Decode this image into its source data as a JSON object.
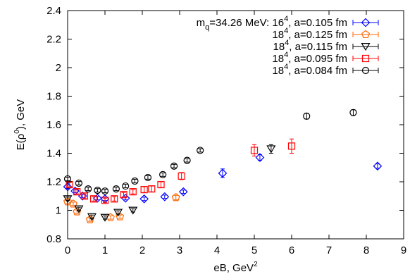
{
  "chart_data": {
    "type": "scatter",
    "xlabel": "eB, GeV",
    "xlabel_sup": "2",
    "ylabel_pre": "E(ρ",
    "ylabel_sup": "0",
    "ylabel_post": "), GeV",
    "xlim": [
      0,
      9
    ],
    "ylim": [
      0.8,
      2.4
    ],
    "xticks": [
      0,
      1,
      2,
      3,
      4,
      5,
      6,
      7,
      8,
      9
    ],
    "yticks": [
      0.8,
      1,
      1.2,
      1.4,
      1.6,
      1.8,
      2,
      2.2,
      2.4
    ],
    "yticklabels": [
      "0.8",
      "1",
      "1.2",
      "1.4",
      "1.6",
      "1.8",
      "2",
      "2.2",
      "2.4"
    ],
    "legend_position": "top-right",
    "series": [
      {
        "name": "m_q=34.26 MeV: 16^4, a=0.105 fm",
        "legend": {
          "pre": "m",
          "sub": "q",
          "mid": "=34.26 MeV: 16",
          "sup": "4",
          "post": ", a=0.105 fm"
        },
        "color": "#0000ff",
        "marker": "diamond",
        "points": [
          {
            "x": 0.0,
            "y": 1.165,
            "err": 0.012
          },
          {
            "x": 0.2,
            "y": 1.135,
            "err": 0.012
          },
          {
            "x": 0.4,
            "y": 1.1,
            "err": 0.012
          },
          {
            "x": 0.8,
            "y": 1.085,
            "err": 0.012
          },
          {
            "x": 1.0,
            "y": 1.08,
            "err": 0.012
          },
          {
            "x": 1.55,
            "y": 1.085,
            "err": 0.012
          },
          {
            "x": 2.05,
            "y": 1.08,
            "err": 0.012
          },
          {
            "x": 2.6,
            "y": 1.095,
            "err": 0.012
          },
          {
            "x": 3.1,
            "y": 1.13,
            "err": 0.012
          },
          {
            "x": 4.15,
            "y": 1.26,
            "err": 0.03
          },
          {
            "x": 5.15,
            "y": 1.37,
            "err": 0.02
          },
          {
            "x": 8.3,
            "y": 1.31,
            "err": 0.015
          }
        ]
      },
      {
        "name": "18^4, a=0.125 fm",
        "legend": {
          "pre": "",
          "sub": "",
          "mid": "18",
          "sup": "4",
          "post": ", a=0.125 fm"
        },
        "color": "#ff6600",
        "marker": "pentagon",
        "points": [
          {
            "x": 0.0,
            "y": 1.06,
            "err": 0.012
          },
          {
            "x": 0.15,
            "y": 1.045,
            "err": 0.012
          },
          {
            "x": 0.25,
            "y": 0.99,
            "err": 0.012
          },
          {
            "x": 0.6,
            "y": 0.935,
            "err": 0.012
          },
          {
            "x": 1.15,
            "y": 0.95,
            "err": 0.012
          },
          {
            "x": 1.4,
            "y": 0.955,
            "err": 0.012
          },
          {
            "x": 2.9,
            "y": 1.09,
            "err": 0.015
          }
        ]
      },
      {
        "name": "18^4, a=0.115 fm",
        "legend": {
          "pre": "",
          "sub": "",
          "mid": "18",
          "sup": "4",
          "post": ", a=0.115 fm"
        },
        "color": "#000000",
        "marker": "triangle-down",
        "points": [
          {
            "x": 0.0,
            "y": 1.08,
            "err": 0.012
          },
          {
            "x": 0.3,
            "y": 1.01,
            "err": 0.012
          },
          {
            "x": 0.65,
            "y": 0.955,
            "err": 0.012
          },
          {
            "x": 1.0,
            "y": 0.95,
            "err": 0.012
          },
          {
            "x": 1.35,
            "y": 0.985,
            "err": 0.012
          },
          {
            "x": 1.75,
            "y": 1.0,
            "err": 0.012
          },
          {
            "x": 5.45,
            "y": 1.43,
            "err": 0.03
          }
        ]
      },
      {
        "name": "18^4, a=0.095 fm",
        "legend": {
          "pre": "",
          "sub": "",
          "mid": "18",
          "sup": "4",
          "post": ", a=0.095 fm"
        },
        "color": "#ff0000",
        "marker": "square",
        "points": [
          {
            "x": 0.05,
            "y": 1.18,
            "err": 0.015
          },
          {
            "x": 0.25,
            "y": 1.13,
            "err": 0.015
          },
          {
            "x": 0.45,
            "y": 1.1,
            "err": 0.015
          },
          {
            "x": 0.7,
            "y": 1.08,
            "err": 0.015
          },
          {
            "x": 1.0,
            "y": 1.07,
            "err": 0.015
          },
          {
            "x": 1.25,
            "y": 1.08,
            "err": 0.015
          },
          {
            "x": 1.5,
            "y": 1.11,
            "err": 0.015
          },
          {
            "x": 1.75,
            "y": 1.13,
            "err": 0.015
          },
          {
            "x": 2.05,
            "y": 1.145,
            "err": 0.02
          },
          {
            "x": 2.25,
            "y": 1.15,
            "err": 0.02
          },
          {
            "x": 2.5,
            "y": 1.18,
            "err": 0.02
          },
          {
            "x": 3.05,
            "y": 1.24,
            "err": 0.025
          },
          {
            "x": 5.0,
            "y": 1.42,
            "err": 0.04
          },
          {
            "x": 6.0,
            "y": 1.45,
            "err": 0.05
          }
        ]
      },
      {
        "name": "18^4, a=0.084 fm",
        "legend": {
          "pre": "",
          "sub": "",
          "mid": "18",
          "sup": "4",
          "post": ", a=0.084 fm"
        },
        "color": "#000000",
        "marker": "circle",
        "points": [
          {
            "x": 0.0,
            "y": 1.22,
            "err": 0.012
          },
          {
            "x": 0.3,
            "y": 1.19,
            "err": 0.012
          },
          {
            "x": 0.55,
            "y": 1.15,
            "err": 0.012
          },
          {
            "x": 0.8,
            "y": 1.14,
            "err": 0.012
          },
          {
            "x": 1.0,
            "y": 1.135,
            "err": 0.012
          },
          {
            "x": 1.3,
            "y": 1.15,
            "err": 0.012
          },
          {
            "x": 1.55,
            "y": 1.17,
            "err": 0.012
          },
          {
            "x": 1.8,
            "y": 1.205,
            "err": 0.012
          },
          {
            "x": 2.15,
            "y": 1.23,
            "err": 0.012
          },
          {
            "x": 2.55,
            "y": 1.25,
            "err": 0.012
          },
          {
            "x": 2.85,
            "y": 1.31,
            "err": 0.012
          },
          {
            "x": 3.2,
            "y": 1.35,
            "err": 0.012
          },
          {
            "x": 3.55,
            "y": 1.42,
            "err": 0.012
          },
          {
            "x": 6.4,
            "y": 1.66,
            "err": 0.02
          },
          {
            "x": 7.65,
            "y": 1.685,
            "err": 0.02
          }
        ]
      }
    ]
  }
}
